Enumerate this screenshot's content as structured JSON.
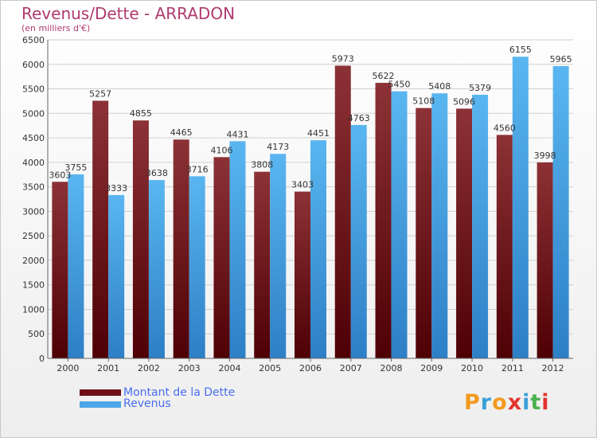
{
  "title": "Revenus/Dette - ARRADON",
  "subtitle": "(en milliers d'€)",
  "legend": [
    {
      "label": "Montant de la Dette",
      "color": "#6d0f15"
    },
    {
      "label": "Revenus",
      "color": "#4ca6e8"
    }
  ],
  "logo": {
    "letters": [
      "P",
      "r",
      "o",
      "x",
      "i",
      "t",
      "i"
    ],
    "colors": [
      "#f29a1f",
      "#3aa0d8",
      "#f29a1f",
      "#e3342f",
      "#3aa0d8",
      "#4bb24b",
      "#e3342f"
    ]
  },
  "chart_data": {
    "type": "bar",
    "categories": [
      "2000",
      "2001",
      "2002",
      "2003",
      "2004",
      "2005",
      "2006",
      "2007",
      "2008",
      "2009",
      "2010",
      "2011",
      "2012"
    ],
    "series": [
      {
        "name": "Montant de la Dette",
        "values": [
          3603,
          5257,
          4855,
          4465,
          4106,
          3808,
          3403,
          5973,
          5622,
          5108,
          5096,
          4560,
          3998
        ]
      },
      {
        "name": "Revenus",
        "values": [
          3755,
          3333,
          3638,
          3716,
          4431,
          4173,
          4451,
          4763,
          5450,
          5408,
          5379,
          6155,
          5965
        ]
      }
    ],
    "ylim": [
      0,
      6500
    ],
    "yticks": [
      0,
      500,
      1000,
      1500,
      2000,
      2500,
      3000,
      3500,
      4000,
      4500,
      5000,
      5500,
      6000,
      6500
    ],
    "grid": true,
    "legend_position": "bottom-left",
    "colors": {
      "dette": "#6d0f15",
      "revenus": "#4ca6e8"
    }
  }
}
